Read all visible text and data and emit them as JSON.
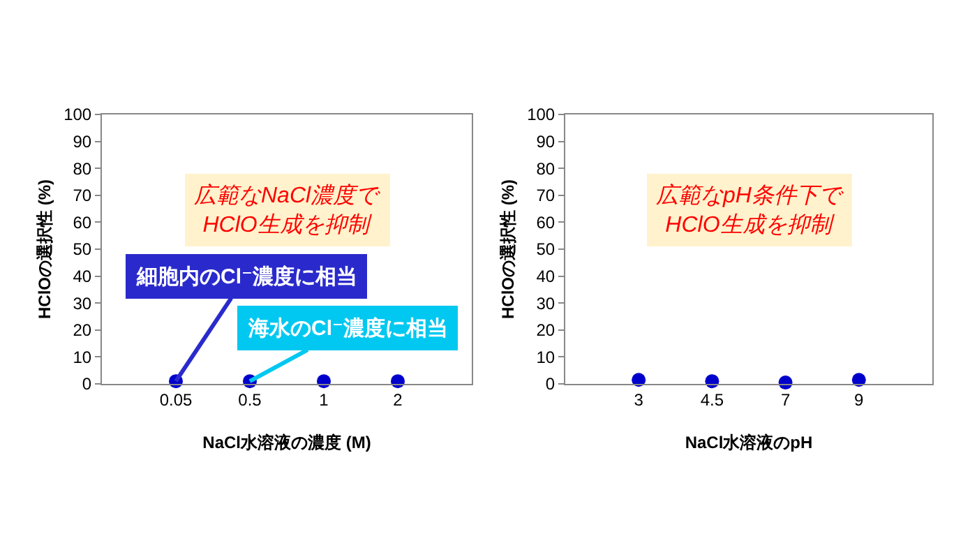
{
  "chart_data": [
    {
      "type": "scatter",
      "categories": [
        "0.05",
        "0.5",
        "1",
        "2"
      ],
      "values": [
        1,
        1,
        1,
        1
      ],
      "color": "#0000cc",
      "marker": "circle",
      "xlabel": "NaCl水溶液の濃度 (M)",
      "ylabel": "HClOの選択性 (%)",
      "ylim": [
        0,
        100
      ],
      "yticks": [
        0,
        10,
        20,
        30,
        40,
        50,
        60,
        70,
        80,
        90,
        100
      ],
      "grid": false,
      "annotations": [
        "広範なNaCl濃度で\nHClO生成を抑制",
        {
          "text": "細胞内のCl⁻濃度に相当",
          "x": "0.05",
          "y": 1
        },
        {
          "text": "海水のCl⁻濃度に相当",
          "x": "0.5",
          "y": 1
        }
      ]
    },
    {
      "type": "scatter",
      "categories": [
        "3",
        "4.5",
        "7",
        "9"
      ],
      "values": [
        1.5,
        1,
        0.5,
        1.5
      ],
      "color": "#0000cc",
      "marker": "circle",
      "xlabel": "NaCl水溶液のpH",
      "ylabel": "HClOの選択性 (%)",
      "ylim": [
        0,
        100
      ],
      "yticks": [
        0,
        10,
        20,
        30,
        40,
        50,
        60,
        70,
        80,
        90,
        100
      ],
      "grid": false,
      "annotations": [
        "広範なpH条件下で\nHClO生成を抑制"
      ]
    }
  ]
}
